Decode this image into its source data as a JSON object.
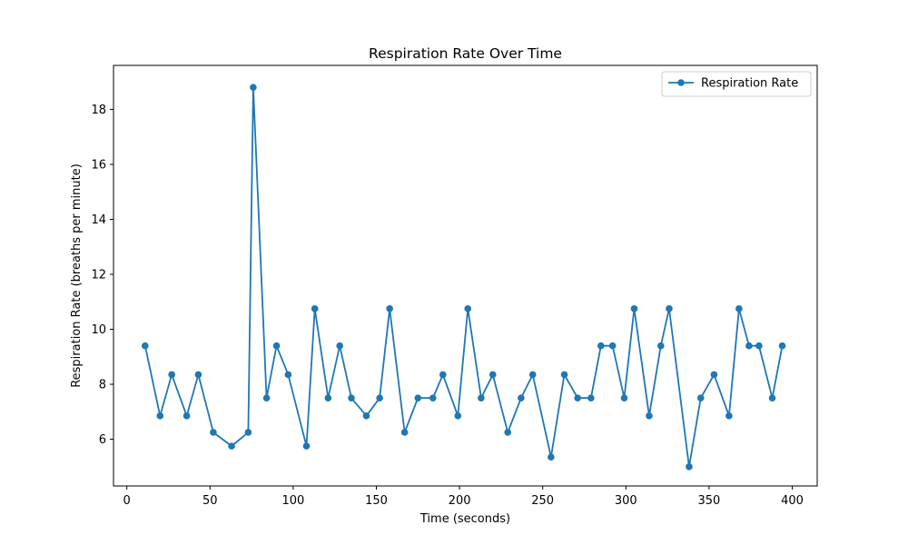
{
  "chart_data": {
    "type": "line",
    "title": "Respiration Rate Over Time",
    "xlabel": "Time (seconds)",
    "ylabel": "Respiration Rate (breaths per minute)",
    "xlim": [
      -8,
      415
    ],
    "ylim": [
      4.3,
      19.6
    ],
    "xticks": [
      0,
      50,
      100,
      150,
      200,
      250,
      300,
      350,
      400
    ],
    "yticks": [
      6,
      8,
      10,
      12,
      14,
      16,
      18
    ],
    "legend_position": "top-right",
    "grid": false,
    "series": [
      {
        "name": "Respiration Rate",
        "color": "#1f77b4",
        "marker": "circle",
        "x": [
          11,
          20,
          27,
          36,
          43,
          52,
          63,
          73,
          76,
          84,
          90,
          97,
          108,
          113,
          121,
          128,
          135,
          144,
          152,
          158,
          167,
          175,
          184,
          190,
          199,
          205,
          213,
          220,
          229,
          237,
          244,
          255,
          263,
          271,
          279,
          285,
          292,
          299,
          305,
          314,
          321,
          326,
          338,
          345,
          353,
          362,
          368,
          374,
          380,
          388,
          394
        ],
        "y": [
          9.4,
          6.85,
          8.35,
          6.85,
          8.35,
          6.25,
          5.75,
          6.25,
          18.8,
          7.5,
          9.4,
          8.35,
          5.75,
          10.75,
          7.5,
          9.4,
          7.5,
          6.85,
          7.5,
          10.75,
          6.25,
          7.5,
          7.5,
          8.35,
          6.85,
          10.75,
          7.5,
          8.35,
          6.25,
          7.5,
          8.35,
          5.35,
          8.35,
          7.5,
          7.5,
          9.4,
          9.4,
          7.5,
          10.75,
          6.85,
          9.4,
          10.75,
          5.0,
          7.5,
          8.35,
          6.85,
          10.75,
          9.4,
          9.4,
          7.5,
          9.4
        ]
      }
    ]
  }
}
